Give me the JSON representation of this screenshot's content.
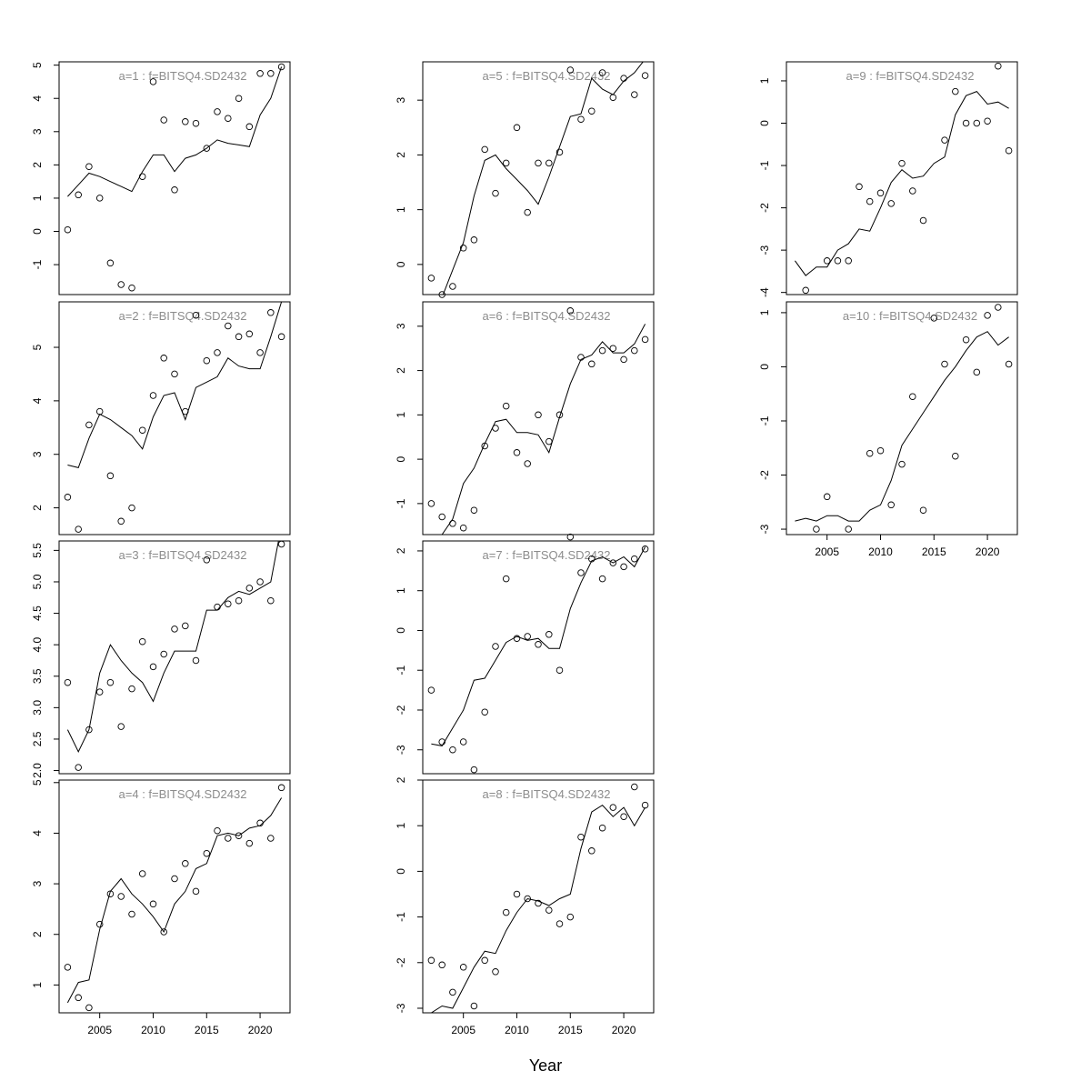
{
  "chart_data": {
    "type": "line",
    "xlabel": "Year",
    "ylabel": "",
    "x_ticks": [
      2005,
      2010,
      2015,
      2020
    ],
    "years": [
      2002,
      2003,
      2004,
      2005,
      2006,
      2007,
      2008,
      2009,
      2010,
      2011,
      2012,
      2013,
      2014,
      2015,
      2016,
      2017,
      2018,
      2019,
      2020,
      2021,
      2022
    ],
    "series_styles": {
      "observed": "open circles",
      "fitted": "solid line"
    },
    "panels": [
      {
        "title": "a=1  :  f=BITSQ4.SD2432",
        "ylim": [
          -1.9,
          5.1
        ],
        "yticks": [
          -1,
          0,
          1,
          2,
          3,
          4,
          5
        ],
        "observed": [
          0.05,
          1.1,
          1.95,
          1.0,
          -0.95,
          -1.6,
          -1.7,
          1.65,
          4.5,
          3.35,
          1.25,
          3.3,
          3.25,
          2.5,
          3.6,
          3.4,
          4.0,
          3.15,
          4.75,
          4.75,
          4.95
        ],
        "fitted": [
          1.05,
          1.4,
          1.75,
          1.65,
          1.5,
          1.35,
          1.2,
          1.8,
          2.3,
          2.3,
          1.8,
          2.2,
          2.3,
          2.5,
          2.75,
          2.65,
          2.6,
          2.55,
          3.5,
          4.0,
          4.95
        ]
      },
      {
        "title": "a=2  :  f=BITSQ4.SD2432",
        "ylim": [
          1.5,
          5.85
        ],
        "yticks": [
          2,
          3,
          4,
          5
        ],
        "observed": [
          2.2,
          1.6,
          3.55,
          3.8,
          2.6,
          1.75,
          2.0,
          3.45,
          4.1,
          4.8,
          4.5,
          3.8,
          5.6,
          4.75,
          4.9,
          5.4,
          5.2,
          5.25,
          4.9,
          5.65,
          5.2
        ],
        "fitted": [
          2.8,
          2.75,
          3.3,
          3.75,
          3.65,
          3.5,
          3.35,
          3.1,
          3.7,
          4.1,
          4.15,
          3.65,
          4.25,
          4.35,
          4.45,
          4.8,
          4.65,
          4.6,
          4.6,
          5.2,
          5.85
        ]
      },
      {
        "title": "a=3  :  f=BITSQ4.SD2432",
        "ylim": [
          1.95,
          5.65
        ],
        "yticks": [
          2.0,
          2.5,
          3.0,
          3.5,
          4.0,
          4.5,
          5.0,
          5.5
        ],
        "observed": [
          3.4,
          2.05,
          2.65,
          3.25,
          3.4,
          2.7,
          3.3,
          4.05,
          3.65,
          3.85,
          4.25,
          4.3,
          3.75,
          5.35,
          4.6,
          4.65,
          4.7,
          4.9,
          5.0,
          4.7,
          5.6
        ],
        "fitted": [
          2.65,
          2.3,
          2.65,
          3.55,
          4.0,
          3.75,
          3.55,
          3.4,
          3.1,
          3.55,
          3.9,
          3.9,
          3.9,
          4.55,
          4.55,
          4.75,
          4.85,
          4.8,
          4.9,
          5.0,
          5.9
        ]
      },
      {
        "title": "a=4  :  f=BITSQ4.SD2432",
        "ylim": [
          0.45,
          5.05
        ],
        "yticks": [
          1,
          2,
          3,
          4,
          5
        ],
        "observed": [
          1.35,
          0.75,
          0.55,
          2.2,
          2.8,
          2.75,
          2.4,
          3.2,
          2.6,
          2.05,
          3.1,
          3.4,
          2.85,
          3.6,
          4.05,
          3.9,
          3.95,
          3.8,
          4.2,
          3.9,
          4.9
        ],
        "fitted": [
          0.65,
          1.05,
          1.1,
          2.1,
          2.85,
          3.1,
          2.8,
          2.6,
          2.35,
          2.05,
          2.6,
          2.85,
          3.3,
          3.4,
          3.95,
          4.0,
          3.95,
          4.1,
          4.15,
          4.35,
          4.7
        ]
      },
      {
        "title": "a=5  :  f=BITSQ4.SD2432",
        "ylim": [
          -0.55,
          3.7
        ],
        "yticks": [
          0,
          1,
          2,
          3
        ],
        "observed": [
          -0.25,
          -0.55,
          -0.4,
          0.3,
          0.45,
          2.1,
          1.3,
          1.85,
          2.5,
          0.95,
          1.85,
          1.85,
          2.05,
          3.55,
          2.65,
          2.8,
          3.5,
          3.05,
          3.4,
          3.1,
          3.45
        ],
        "fitted": [
          -0.9,
          -0.6,
          -0.1,
          0.4,
          1.25,
          1.9,
          2.0,
          1.75,
          1.55,
          1.35,
          1.1,
          1.6,
          2.15,
          2.7,
          2.75,
          3.4,
          3.2,
          3.1,
          3.35,
          3.5,
          3.75
        ]
      },
      {
        "title": "a=6  :  f=BITSQ4.SD2432",
        "ylim": [
          -1.7,
          3.55
        ],
        "yticks": [
          -1,
          0,
          1,
          2,
          3
        ],
        "observed": [
          -1.0,
          -1.3,
          -1.45,
          -1.55,
          -1.15,
          0.3,
          0.7,
          1.2,
          0.15,
          -0.1,
          1.0,
          0.4,
          1.0,
          3.35,
          2.3,
          2.15,
          2.45,
          2.5,
          2.25,
          2.45,
          2.7
        ],
        "fitted": [
          -1.85,
          -1.7,
          -1.35,
          -0.55,
          -0.2,
          0.35,
          0.85,
          0.9,
          0.6,
          0.6,
          0.55,
          0.15,
          0.95,
          1.7,
          2.25,
          2.35,
          2.65,
          2.4,
          2.4,
          2.6,
          3.05
        ]
      },
      {
        "title": "a=7  :  f=BITSQ4.SD2432",
        "ylim": [
          -3.6,
          2.25
        ],
        "yticks": [
          -3,
          -2,
          -1,
          0,
          1,
          2
        ],
        "observed": [
          -1.5,
          -2.8,
          -3.0,
          -2.8,
          -3.5,
          -2.05,
          -0.4,
          1.3,
          -0.2,
          -0.15,
          -0.35,
          -0.1,
          -1.0,
          2.35,
          1.45,
          1.8,
          1.3,
          1.7,
          1.6,
          1.8,
          2.05
        ],
        "fitted": [
          -2.85,
          -2.9,
          -2.45,
          -2.0,
          -1.25,
          -1.2,
          -0.75,
          -0.3,
          -0.15,
          -0.25,
          -0.2,
          -0.45,
          -0.45,
          0.55,
          1.2,
          1.75,
          1.85,
          1.7,
          1.85,
          1.6,
          2.1
        ]
      },
      {
        "title": "a=8  :  f=BITSQ4.SD2432",
        "ylim": [
          -3.1,
          2.0
        ],
        "yticks": [
          -3,
          -2,
          -1,
          0,
          1,
          2
        ],
        "observed": [
          -1.95,
          -2.05,
          -2.65,
          -2.1,
          -2.95,
          -1.95,
          -2.2,
          -0.9,
          -0.5,
          -0.6,
          -0.7,
          -0.85,
          -1.15,
          -1.0,
          0.75,
          0.45,
          0.95,
          1.4,
          1.2,
          1.85,
          1.45
        ],
        "fitted": [
          -3.1,
          -2.95,
          -3.0,
          -2.55,
          -2.1,
          -1.75,
          -1.8,
          -1.3,
          -0.9,
          -0.6,
          -0.65,
          -0.75,
          -0.6,
          -0.5,
          0.5,
          1.3,
          1.45,
          1.2,
          1.4,
          1.0,
          1.4
        ]
      },
      {
        "title": "a=9  :  f=BITSQ4.SD2432",
        "ylim": [
          -4.05,
          1.45
        ],
        "yticks": [
          -4,
          -3,
          -2,
          -1,
          0,
          1
        ],
        "observed": [
          -3.95,
          -3.25,
          -3.25,
          -3.25,
          -1.5,
          -1.85,
          -1.65,
          -1.9,
          -0.95,
          -1.6,
          -2.3,
          -0.4,
          0.75,
          0.0,
          0.0,
          0.05,
          1.35,
          -0.65
        ],
        "observed_years": [
          2003,
          2005,
          2006,
          2007,
          2008,
          2009,
          2010,
          2011,
          2012,
          2013,
          2014,
          2016,
          2017,
          2018,
          2019,
          2020,
          2021,
          2022
        ],
        "fitted": [
          -3.25,
          -3.6,
          -3.4,
          -3.4,
          -3.0,
          -2.85,
          -2.5,
          -2.55,
          -2.0,
          -1.4,
          -1.1,
          -1.3,
          -1.25,
          -0.95,
          -0.8,
          0.2,
          0.65,
          0.75,
          0.45,
          0.5,
          0.35
        ]
      },
      {
        "title": "a=10  :  f=BITSQ4.SD2432",
        "ylim": [
          -3.1,
          1.2
        ],
        "yticks": [
          -3,
          -2,
          -1,
          0,
          1
        ],
        "observed": [
          -3.0,
          -2.4,
          -3.0,
          -1.6,
          -1.55,
          -2.55,
          -1.8,
          -0.55,
          -2.65,
          0.9,
          0.05,
          -1.65,
          0.5,
          -0.1,
          0.95,
          1.1,
          0.05
        ],
        "observed_years": [
          2004,
          2005,
          2007,
          2009,
          2010,
          2011,
          2012,
          2013,
          2014,
          2015,
          2016,
          2017,
          2018,
          2019,
          2020,
          2021,
          2022
        ],
        "fitted": [
          -2.85,
          -2.8,
          -2.85,
          -2.75,
          -2.75,
          -2.85,
          -2.85,
          -2.65,
          -2.55,
          -2.1,
          -1.45,
          -1.15,
          -0.85,
          -0.55,
          -0.25,
          0.0,
          0.3,
          0.55,
          0.65,
          0.4,
          0.55
        ]
      }
    ]
  }
}
